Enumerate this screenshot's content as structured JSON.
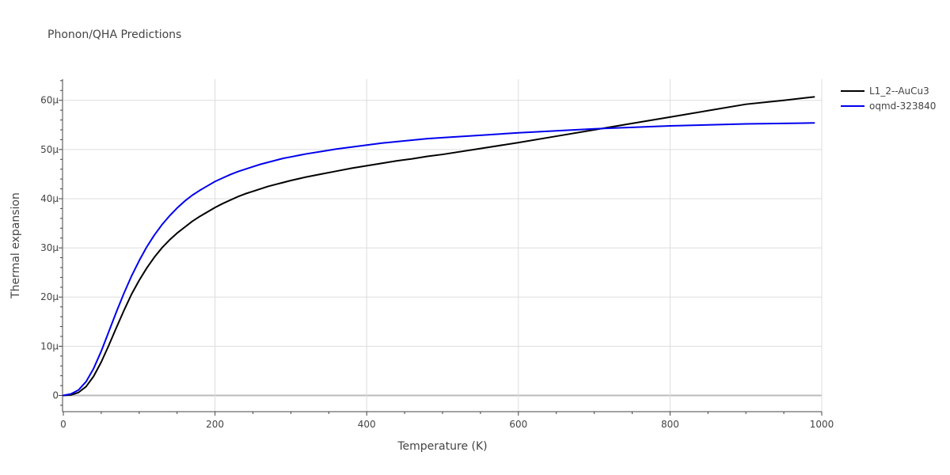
{
  "chart_data": {
    "type": "line",
    "title": "Phonon/QHA Predictions",
    "xlabel": "Temperature (K)",
    "ylabel": "Thermal expansion",
    "xlim": [
      0,
      1000
    ],
    "ylim": [
      -3.3e-06,
      6.43e-05
    ],
    "x_ticks": [
      0,
      200,
      400,
      600,
      800,
      1000
    ],
    "x_tick_labels": [
      "0",
      "200",
      "400",
      "600",
      "800",
      "1000"
    ],
    "y_ticks": [
      0,
      1e-05,
      2e-05,
      3e-05,
      4e-05,
      5e-05,
      6e-05
    ],
    "y_tick_labels": [
      "0",
      "10μ",
      "20μ",
      "30μ",
      "40μ",
      "50μ",
      "60μ"
    ],
    "grid": true,
    "legend_position": "top-right",
    "x": [
      0,
      10,
      20,
      30,
      40,
      50,
      60,
      70,
      80,
      90,
      100,
      110,
      120,
      130,
      140,
      150,
      160,
      170,
      180,
      190,
      200,
      210,
      220,
      230,
      240,
      250,
      260,
      270,
      280,
      290,
      300,
      320,
      340,
      360,
      380,
      400,
      420,
      440,
      460,
      480,
      500,
      550,
      600,
      650,
      700,
      750,
      800,
      850,
      900,
      950,
      990
    ],
    "series": [
      {
        "name": "L1_2--AuCu3",
        "color": "#000000",
        "values": [
          0,
          1e-07,
          6e-07,
          1.8e-06,
          3.9e-06,
          6.8e-06,
          1.02e-05,
          1.38e-05,
          1.73e-05,
          2.06e-05,
          2.34e-05,
          2.59e-05,
          2.81e-05,
          3e-05,
          3.16e-05,
          3.3e-05,
          3.42e-05,
          3.54e-05,
          3.64e-05,
          3.73e-05,
          3.82e-05,
          3.9e-05,
          3.97e-05,
          4.04e-05,
          4.1e-05,
          4.15e-05,
          4.2e-05,
          4.25e-05,
          4.29e-05,
          4.33e-05,
          4.37e-05,
          4.44e-05,
          4.5e-05,
          4.56e-05,
          4.62e-05,
          4.67e-05,
          4.72e-05,
          4.77e-05,
          4.81e-05,
          4.86e-05,
          4.9e-05,
          5.02e-05,
          5.14e-05,
          5.27e-05,
          5.4e-05,
          5.53e-05,
          5.66e-05,
          5.79e-05,
          5.92e-05,
          6e-05,
          6.07e-05
        ]
      },
      {
        "name": "oqmd-323840",
        "color": "#0000ee",
        "values": [
          0,
          3e-07,
          1.1e-06,
          2.8e-06,
          5.5e-06,
          9e-06,
          1.3e-05,
          1.7e-05,
          2.08e-05,
          2.43e-05,
          2.74e-05,
          3.02e-05,
          3.26e-05,
          3.47e-05,
          3.65e-05,
          3.81e-05,
          3.95e-05,
          4.07e-05,
          4.17e-05,
          4.26e-05,
          4.35e-05,
          4.42e-05,
          4.49e-05,
          4.55e-05,
          4.6e-05,
          4.65e-05,
          4.7e-05,
          4.74e-05,
          4.78e-05,
          4.82e-05,
          4.85e-05,
          4.91e-05,
          4.96e-05,
          5.01e-05,
          5.05e-05,
          5.09e-05,
          5.13e-05,
          5.16e-05,
          5.19e-05,
          5.22e-05,
          5.24e-05,
          5.29e-05,
          5.34e-05,
          5.38e-05,
          5.42e-05,
          5.45e-05,
          5.48e-05,
          5.5e-05,
          5.52e-05,
          5.53e-05,
          5.54e-05
        ]
      }
    ]
  }
}
